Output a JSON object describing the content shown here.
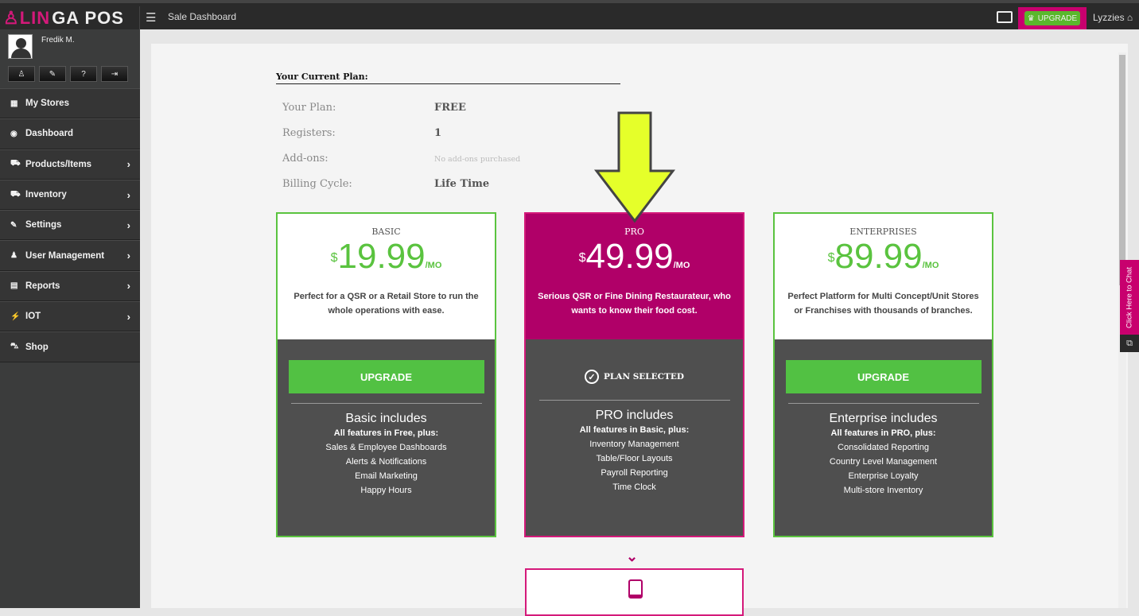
{
  "header": {
    "logo_a": "LIN",
    "logo_b": "GA POS",
    "page_title": "Sale Dashboard",
    "upgrade_label": "UPGRADE",
    "store": "Lyzzies"
  },
  "user": {
    "name": "Fredik M."
  },
  "sidebar": {
    "items": [
      {
        "label": "My Stores",
        "icon": "store-icon",
        "chevron": false
      },
      {
        "label": "Dashboard",
        "icon": "dashboard-icon",
        "chevron": false
      },
      {
        "label": "Products/Items",
        "icon": "basket-icon",
        "chevron": true
      },
      {
        "label": "Inventory",
        "icon": "basket-icon",
        "chevron": true
      },
      {
        "label": "Settings",
        "icon": "wrench-icon",
        "chevron": true
      },
      {
        "label": "User Management",
        "icon": "users-icon",
        "chevron": true
      },
      {
        "label": "Reports",
        "icon": "report-icon",
        "chevron": true
      },
      {
        "label": "IOT",
        "icon": "iot-icon",
        "chevron": true
      },
      {
        "label": "Shop",
        "icon": "cart-icon",
        "chevron": false
      }
    ]
  },
  "current_plan": {
    "title": "Your Current Plan:",
    "rows": [
      {
        "label": "Your Plan:",
        "value": "FREE"
      },
      {
        "label": "Registers:",
        "value": "1"
      },
      {
        "label": "Add-ons:",
        "value": "No add-ons purchased"
      },
      {
        "label": "Billing Cycle:",
        "value": "Life Time"
      }
    ]
  },
  "plans": [
    {
      "tier": "BASIC",
      "currency": "$",
      "price": "19.99",
      "per": "/MO",
      "desc": "Perfect for a QSR or a Retail Store to run the whole operations with ease.",
      "action": "UPGRADE",
      "includes": "Basic includes",
      "features": [
        "All features in Free, plus:",
        "Sales & Employee Dashboards",
        "Alerts & Notifications",
        "Email Marketing",
        "Happy Hours"
      ]
    },
    {
      "tier": "PRO",
      "currency": "$",
      "price": "49.99",
      "per": "/MO",
      "desc": "Serious QSR or Fine Dining Restaurateur, who wants to know their food cost.",
      "action": "PLAN SELECTED",
      "includes": "PRO includes",
      "features": [
        "All features in Basic, plus:",
        "Inventory Management",
        "Table/Floor Layouts",
        "Payroll Reporting",
        "Time Clock"
      ]
    },
    {
      "tier": "ENTERPRISES",
      "currency": "$",
      "price": "89.99",
      "per": "/MO",
      "desc": "Perfect Platform for Multi Concept/Unit Stores or Franchises with thousands of branches.",
      "action": "UPGRADE",
      "includes": "Enterprise includes",
      "features": [
        "All features in PRO, plus:",
        "Consolidated Reporting",
        "Country Level Management",
        "Enterprise Loyalty",
        "Multi-store Inventory"
      ]
    }
  ],
  "chat": {
    "label": "Click Here to Chat"
  },
  "colors": {
    "brand": "#c8006e",
    "green": "#5ac33f",
    "arrow": "#e5ff2a"
  }
}
